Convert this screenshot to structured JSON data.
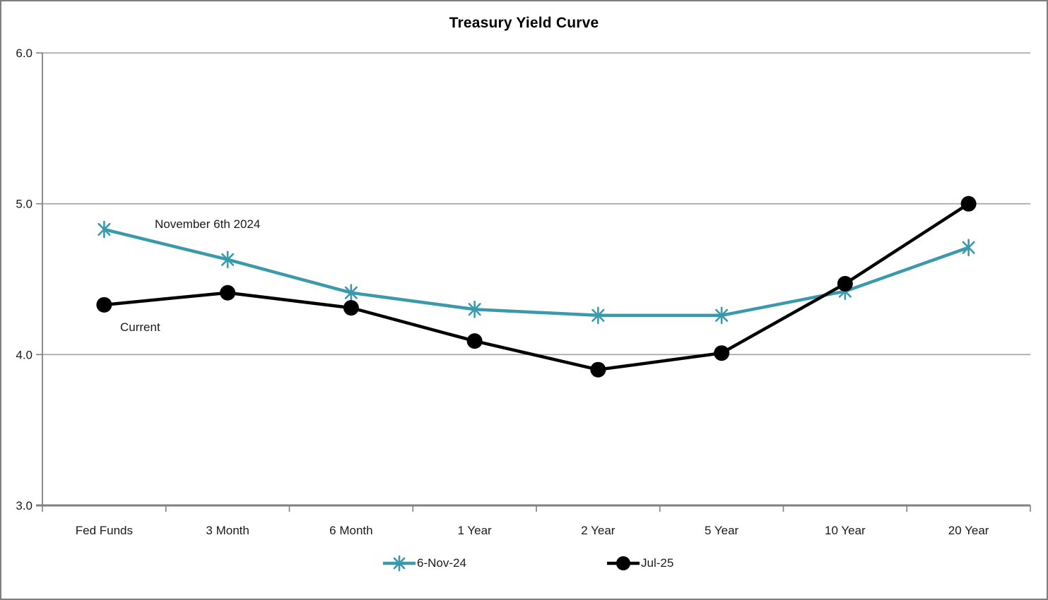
{
  "chart_data": {
    "type": "line",
    "title": "Treasury Yield Curve",
    "categories": [
      "Fed Funds",
      "3 Month",
      "6 Month",
      "1 Year",
      "2 Year",
      "5 Year",
      "10 Year",
      "20 Year"
    ],
    "series": [
      {
        "name": "6-Nov-24",
        "annotation": "November 6th 2024",
        "color": "#3a99ab",
        "marker": "asterisk",
        "values": [
          4.83,
          4.63,
          4.41,
          4.3,
          4.26,
          4.26,
          4.42,
          4.71
        ]
      },
      {
        "name": "Jul-25",
        "annotation": "Current",
        "color": "#000000",
        "marker": "circle",
        "values": [
          4.33,
          4.41,
          4.31,
          4.09,
          3.9,
          4.01,
          4.47,
          5.0
        ]
      }
    ],
    "ylim": [
      3.0,
      6.0
    ],
    "yticks": [
      6.0,
      5.0,
      4.0,
      3.0
    ],
    "ytick_labels": [
      "6.0",
      "5.0",
      "4.0",
      "3.0"
    ],
    "grid": "horizontal-on",
    "legend_position": "bottom",
    "axis_color": "#808080",
    "grid_color": "#a0a0a0"
  }
}
